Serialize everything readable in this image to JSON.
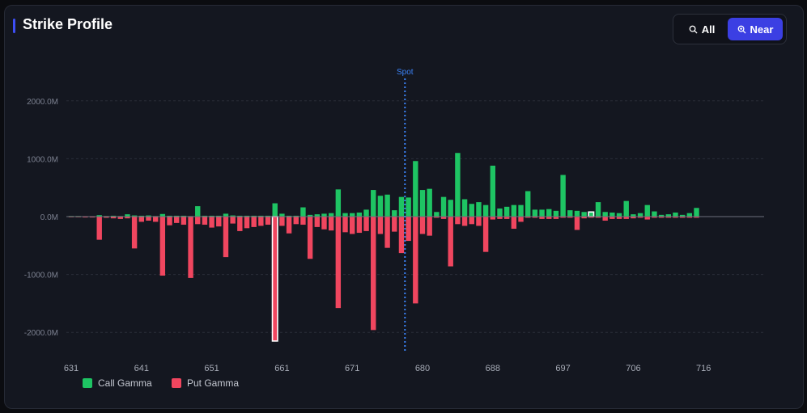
{
  "header": {
    "title": "Strike Profile",
    "toggle": {
      "all_label": "All",
      "near_label": "Near",
      "selected": "Near"
    }
  },
  "chart_data": {
    "type": "bar",
    "y_tick_labels": [
      "2000.0M",
      "1000.0M",
      "0.0M",
      "-1000.0M",
      "-2000.0M"
    ],
    "y_tick_values": [
      2000,
      1000,
      0,
      -1000,
      -2000
    ],
    "ylim": [
      -2350,
      2450
    ],
    "x_tick_labels": [
      "631",
      "641",
      "651",
      "661",
      "671",
      "680",
      "688",
      "697",
      "706",
      "716"
    ],
    "x_tick_positions": [
      0,
      10,
      20,
      30,
      40,
      50,
      60,
      70,
      80,
      90
    ],
    "spot_label": "Spot",
    "spot_position": 47.5,
    "highlighted_bars": [
      29,
      74
    ],
    "series": [
      {
        "name": "Call Gamma",
        "color": "#1ec463",
        "values": [
          10,
          10,
          5,
          5,
          25,
          10,
          15,
          10,
          40,
          20,
          15,
          20,
          10,
          45,
          15,
          15,
          15,
          10,
          180,
          15,
          15,
          15,
          50,
          20,
          15,
          15,
          15,
          15,
          15,
          230,
          50,
          15,
          15,
          160,
          30,
          40,
          50,
          60,
          470,
          60,
          60,
          70,
          120,
          460,
          360,
          380,
          110,
          340,
          330,
          960,
          460,
          480,
          80,
          340,
          290,
          1100,
          300,
          220,
          250,
          200,
          880,
          140,
          170,
          200,
          200,
          440,
          120,
          120,
          130,
          100,
          720,
          110,
          100,
          80,
          80,
          250,
          80,
          70,
          60,
          270,
          40,
          60,
          200,
          90,
          30,
          40,
          70,
          30,
          60,
          150
        ]
      },
      {
        "name": "Put Gamma",
        "color": "#f0465f",
        "values": [
          -10,
          -10,
          -15,
          -15,
          -400,
          -20,
          -30,
          -40,
          -30,
          -550,
          -90,
          -70,
          -90,
          -1020,
          -150,
          -110,
          -140,
          -1060,
          -130,
          -140,
          -190,
          -170,
          -700,
          -120,
          -250,
          -200,
          -180,
          -160,
          -140,
          -2150,
          -160,
          -290,
          -130,
          -140,
          -730,
          -180,
          -220,
          -240,
          -1580,
          -270,
          -300,
          -280,
          -250,
          -1960,
          -300,
          -540,
          -260,
          -630,
          -420,
          -1500,
          -300,
          -330,
          -20,
          -40,
          -860,
          -130,
          -160,
          -130,
          -160,
          -610,
          -50,
          -40,
          -40,
          -210,
          -90,
          -20,
          -20,
          -40,
          -40,
          -40,
          -20,
          -20,
          -230,
          -30,
          -20,
          -20,
          -70,
          -40,
          -40,
          -40,
          -30,
          -20,
          -50,
          -20,
          -20,
          -20,
          -20,
          -20,
          -20,
          -20
        ]
      }
    ],
    "legend": [
      "Call Gamma",
      "Put Gamma"
    ],
    "legend_position": "bottom-left",
    "grid": true
  }
}
